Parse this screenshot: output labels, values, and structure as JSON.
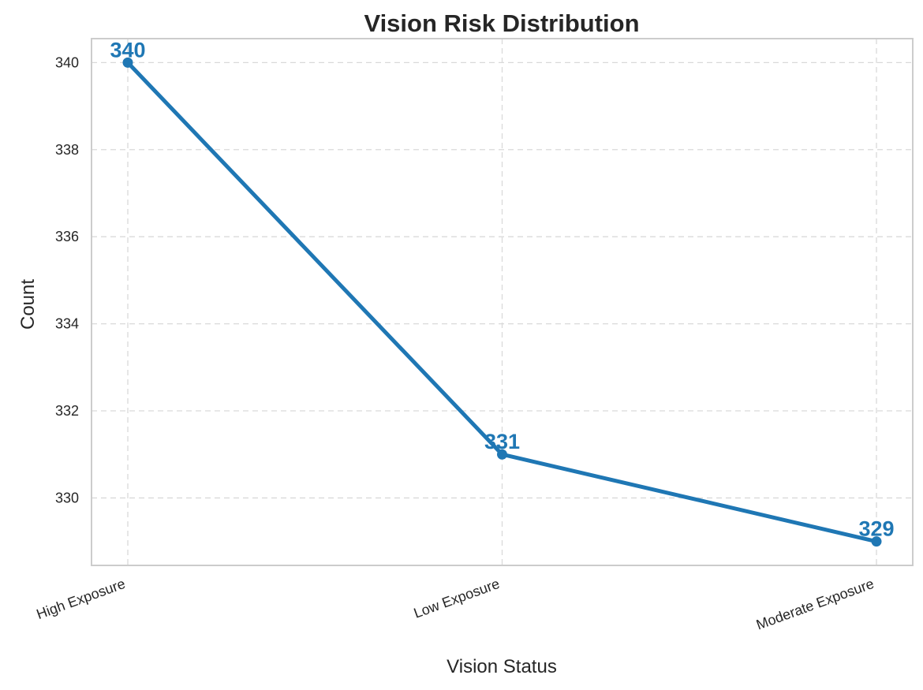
{
  "chart_data": {
    "type": "line",
    "title": "Vision Risk Distribution",
    "xlabel": "Vision Status",
    "ylabel": "Count",
    "categories": [
      "High Exposure",
      "Low Exposure",
      "Moderate Exposure"
    ],
    "series": [
      {
        "values": [
          340,
          331,
          329
        ],
        "color": "#1f77b4"
      }
    ],
    "data_labels": [
      "340",
      "331",
      "329"
    ],
    "ylim": [
      328.45,
      340.55
    ],
    "yticks": [
      330,
      332,
      334,
      336,
      338,
      340
    ],
    "ytick_labels": [
      "330",
      "332",
      "334",
      "336",
      "338",
      "340"
    ],
    "grid": true,
    "grid_style": "dashed",
    "legend": "none"
  }
}
